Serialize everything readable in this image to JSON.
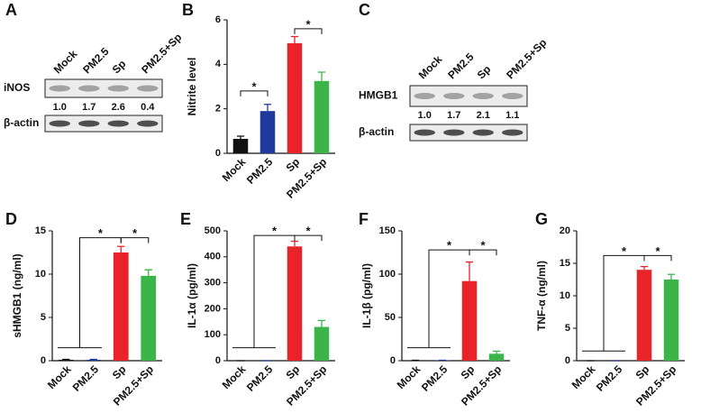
{
  "blots": [
    {
      "panel": "A",
      "lanes": [
        "Mock",
        "PM2.5",
        "Sp",
        "PM2.5+Sp"
      ],
      "rows": [
        "iNOS",
        "β-actin"
      ],
      "ratios": [
        "1.0",
        "1.7",
        "2.6",
        "0.4"
      ]
    },
    {
      "panel": "C",
      "lanes": [
        "Mock",
        "PM2.5",
        "Sp",
        "PM2.5+Sp"
      ],
      "rows": [
        "HMGB1",
        "β-actin"
      ],
      "ratios": [
        "1.0",
        "1.7",
        "2.1",
        "1.1"
      ]
    }
  ],
  "chart_data": [
    {
      "type": "bar",
      "panel": "B",
      "ylabel": "Nitrite level",
      "categories": [
        "Mock",
        "PM2.5",
        "Sp",
        "PM2.5+Sp"
      ],
      "values": [
        0.65,
        1.9,
        4.95,
        3.25
      ],
      "errors": [
        0.12,
        0.3,
        0.3,
        0.4
      ],
      "colors": [
        "#111111",
        "#1f3a9c",
        "#e8232a",
        "#3bb44a"
      ],
      "ylim": [
        0,
        6
      ],
      "yticks": [
        0,
        2,
        4,
        6
      ],
      "significance": [
        "*",
        "*"
      ]
    },
    {
      "type": "bar",
      "panel": "D",
      "ylabel": "sHMGB1 (ng/ml)",
      "categories": [
        "Mock",
        "PM2.5",
        "Sp",
        "PM2.5+Sp"
      ],
      "values": [
        0.1,
        0.1,
        12.5,
        9.8
      ],
      "errors": [
        0.05,
        0.05,
        0.7,
        0.7
      ],
      "colors": [
        "#111111",
        "#1f3a9c",
        "#e8232a",
        "#3bb44a"
      ],
      "ylim": [
        0,
        15
      ],
      "yticks": [
        0,
        5,
        10,
        15
      ],
      "significance": [
        "*",
        "*"
      ]
    },
    {
      "type": "bar",
      "panel": "E",
      "ylabel": "IL-1α (pg/ml)",
      "categories": [
        "Mock",
        "PM2.5",
        "Sp",
        "PM2.5+Sp"
      ],
      "values": [
        0,
        0,
        440,
        130
      ],
      "errors": [
        0,
        0,
        20,
        25
      ],
      "colors": [
        "#111111",
        "#1f3a9c",
        "#e8232a",
        "#3bb44a"
      ],
      "ylim": [
        0,
        500
      ],
      "yticks": [
        0,
        100,
        200,
        300,
        400,
        500
      ],
      "significance": [
        "*",
        "*"
      ]
    },
    {
      "type": "bar",
      "panel": "F",
      "ylabel": "IL-1β (pg/ml)",
      "categories": [
        "Mock",
        "PM2.5",
        "Sp",
        "PM2.5+Sp"
      ],
      "values": [
        0.5,
        0.5,
        92,
        8
      ],
      "errors": [
        0,
        0,
        22,
        3
      ],
      "colors": [
        "#111111",
        "#1f3a9c",
        "#e8232a",
        "#3bb44a"
      ],
      "ylim": [
        0,
        150
      ],
      "yticks": [
        0,
        50,
        100,
        150
      ],
      "significance": [
        "*",
        "*"
      ]
    },
    {
      "type": "bar",
      "panel": "G",
      "ylabel": "TNF-α (ng/ml)",
      "categories": [
        "Mock",
        "PM2.5",
        "Sp",
        "PM2.5+Sp"
      ],
      "values": [
        0,
        0,
        14,
        12.5
      ],
      "errors": [
        0,
        0,
        0.5,
        0.8
      ],
      "colors": [
        "#111111",
        "#1f3a9c",
        "#e8232a",
        "#3bb44a"
      ],
      "ylim": [
        0,
        20
      ],
      "yticks": [
        0,
        5,
        10,
        15,
        20
      ],
      "significance": [
        "*",
        "*"
      ]
    }
  ]
}
